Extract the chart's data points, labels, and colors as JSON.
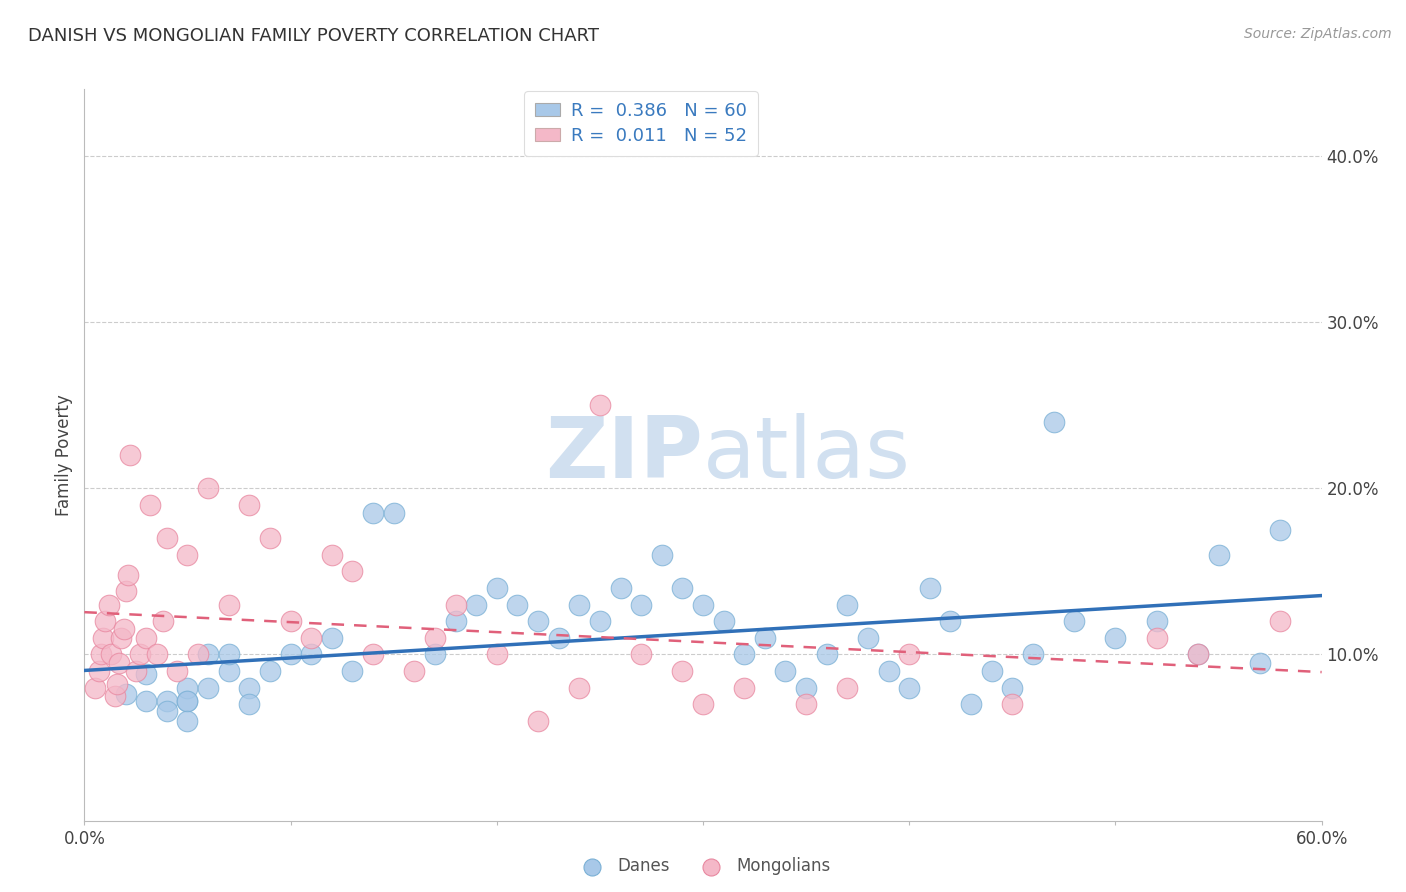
{
  "title": "DANISH VS MONGOLIAN FAMILY POVERTY CORRELATION CHART",
  "source": "Source: ZipAtlas.com",
  "ylabel": "Family Poverty",
  "xlim": [
    0.0,
    0.6
  ],
  "ylim": [
    0.0,
    0.44
  ],
  "danes_color": "#a8c8e8",
  "danes_edge_color": "#7ab0d5",
  "mongolians_color": "#f4b8c8",
  "mongolians_edge_color": "#e888a0",
  "danes_R": 0.386,
  "danes_N": 60,
  "mongolians_R": 0.011,
  "mongolians_N": 52,
  "danes_line_color": "#3070b8",
  "mongolians_line_color": "#e0607a",
  "legend_label_danes": "Danes",
  "legend_label_mongolians": "Mongolians",
  "watermark_zip": "ZIP",
  "watermark_atlas": "atlas",
  "title_color": "#333333",
  "legend_text_color": "#3a7abf",
  "danes_x": [
    0.02,
    0.03,
    0.03,
    0.04,
    0.04,
    0.05,
    0.05,
    0.05,
    0.05,
    0.06,
    0.06,
    0.07,
    0.07,
    0.08,
    0.08,
    0.09,
    0.1,
    0.11,
    0.12,
    0.13,
    0.14,
    0.15,
    0.17,
    0.18,
    0.19,
    0.2,
    0.21,
    0.22,
    0.23,
    0.24,
    0.25,
    0.26,
    0.27,
    0.28,
    0.29,
    0.3,
    0.31,
    0.32,
    0.33,
    0.34,
    0.35,
    0.36,
    0.37,
    0.38,
    0.39,
    0.4,
    0.41,
    0.42,
    0.43,
    0.44,
    0.45,
    0.46,
    0.47,
    0.48,
    0.5,
    0.52,
    0.54,
    0.55,
    0.57,
    0.58
  ],
  "danes_y": [
    0.076,
    0.072,
    0.088,
    0.072,
    0.066,
    0.072,
    0.08,
    0.072,
    0.06,
    0.1,
    0.08,
    0.09,
    0.1,
    0.08,
    0.07,
    0.09,
    0.1,
    0.1,
    0.11,
    0.09,
    0.185,
    0.185,
    0.1,
    0.12,
    0.13,
    0.14,
    0.13,
    0.12,
    0.11,
    0.13,
    0.12,
    0.14,
    0.13,
    0.16,
    0.14,
    0.13,
    0.12,
    0.1,
    0.11,
    0.09,
    0.08,
    0.1,
    0.13,
    0.11,
    0.09,
    0.08,
    0.14,
    0.12,
    0.07,
    0.09,
    0.08,
    0.1,
    0.24,
    0.12,
    0.11,
    0.12,
    0.1,
    0.16,
    0.095,
    0.175
  ],
  "mongolians_x": [
    0.005,
    0.007,
    0.008,
    0.009,
    0.01,
    0.012,
    0.013,
    0.015,
    0.016,
    0.017,
    0.018,
    0.019,
    0.02,
    0.021,
    0.022,
    0.025,
    0.027,
    0.03,
    0.032,
    0.035,
    0.038,
    0.04,
    0.045,
    0.05,
    0.055,
    0.06,
    0.07,
    0.08,
    0.09,
    0.1,
    0.11,
    0.12,
    0.13,
    0.14,
    0.16,
    0.17,
    0.18,
    0.2,
    0.22,
    0.24,
    0.25,
    0.27,
    0.29,
    0.3,
    0.32,
    0.35,
    0.37,
    0.4,
    0.45,
    0.52,
    0.54,
    0.58
  ],
  "mongolians_y": [
    0.08,
    0.09,
    0.1,
    0.11,
    0.12,
    0.13,
    0.1,
    0.075,
    0.082,
    0.095,
    0.11,
    0.115,
    0.138,
    0.148,
    0.22,
    0.09,
    0.1,
    0.11,
    0.19,
    0.1,
    0.12,
    0.17,
    0.09,
    0.16,
    0.1,
    0.2,
    0.13,
    0.19,
    0.17,
    0.12,
    0.11,
    0.16,
    0.15,
    0.1,
    0.09,
    0.11,
    0.13,
    0.1,
    0.06,
    0.08,
    0.25,
    0.1,
    0.09,
    0.07,
    0.08,
    0.07,
    0.08,
    0.1,
    0.07,
    0.11,
    0.1,
    0.12
  ]
}
